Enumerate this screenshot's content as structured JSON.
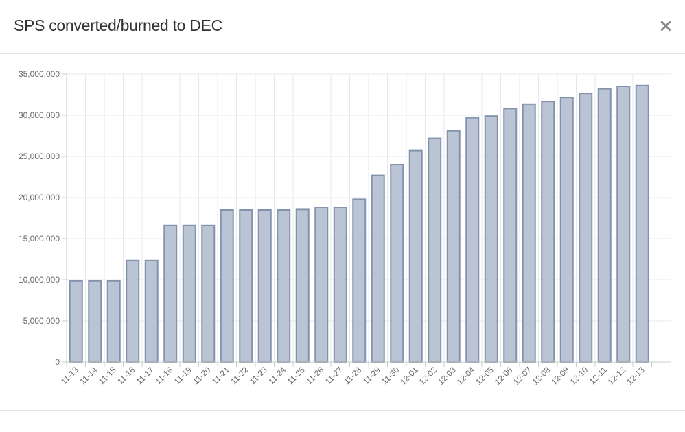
{
  "modal": {
    "title": "SPS converted/burned to DEC",
    "close_label": "×"
  },
  "chart_data": {
    "type": "bar",
    "title": "",
    "xlabel": "",
    "ylabel": "",
    "ylim": [
      0,
      35000000
    ],
    "yticks": [
      0,
      5000000,
      10000000,
      15000000,
      20000000,
      25000000,
      30000000,
      35000000
    ],
    "ytick_labels": [
      "0",
      "5,000,000",
      "10,000,000",
      "15,000,000",
      "20,000,000",
      "25,000,000",
      "30,000,000",
      "35,000,000"
    ],
    "grid": true,
    "legend": "none",
    "bar_fill": "#bac4d4",
    "bar_stroke": "#8393ad",
    "categories": [
      "11-13",
      "11-14",
      "11-15",
      "11-16",
      "11-17",
      "11-18",
      "11-19",
      "11-20",
      "11-21",
      "11-22",
      "11-23",
      "11-24",
      "11-25",
      "11-26",
      "11-27",
      "11-28",
      "11-29",
      "11-30",
      "12-01",
      "12-02",
      "12-03",
      "12-04",
      "12-05",
      "12-06",
      "12-07",
      "12-08",
      "12-09",
      "12-10",
      "12-11",
      "12-12",
      "12-13"
    ],
    "values": [
      9850000,
      9850000,
      9850000,
      12350000,
      12350000,
      16600000,
      16600000,
      16600000,
      18500000,
      18500000,
      18500000,
      18500000,
      18550000,
      18750000,
      18750000,
      19800000,
      22700000,
      24000000,
      25700000,
      27200000,
      28100000,
      29700000,
      29900000,
      30800000,
      31350000,
      31650000,
      32150000,
      32650000,
      33200000,
      33500000,
      33600000
    ]
  }
}
